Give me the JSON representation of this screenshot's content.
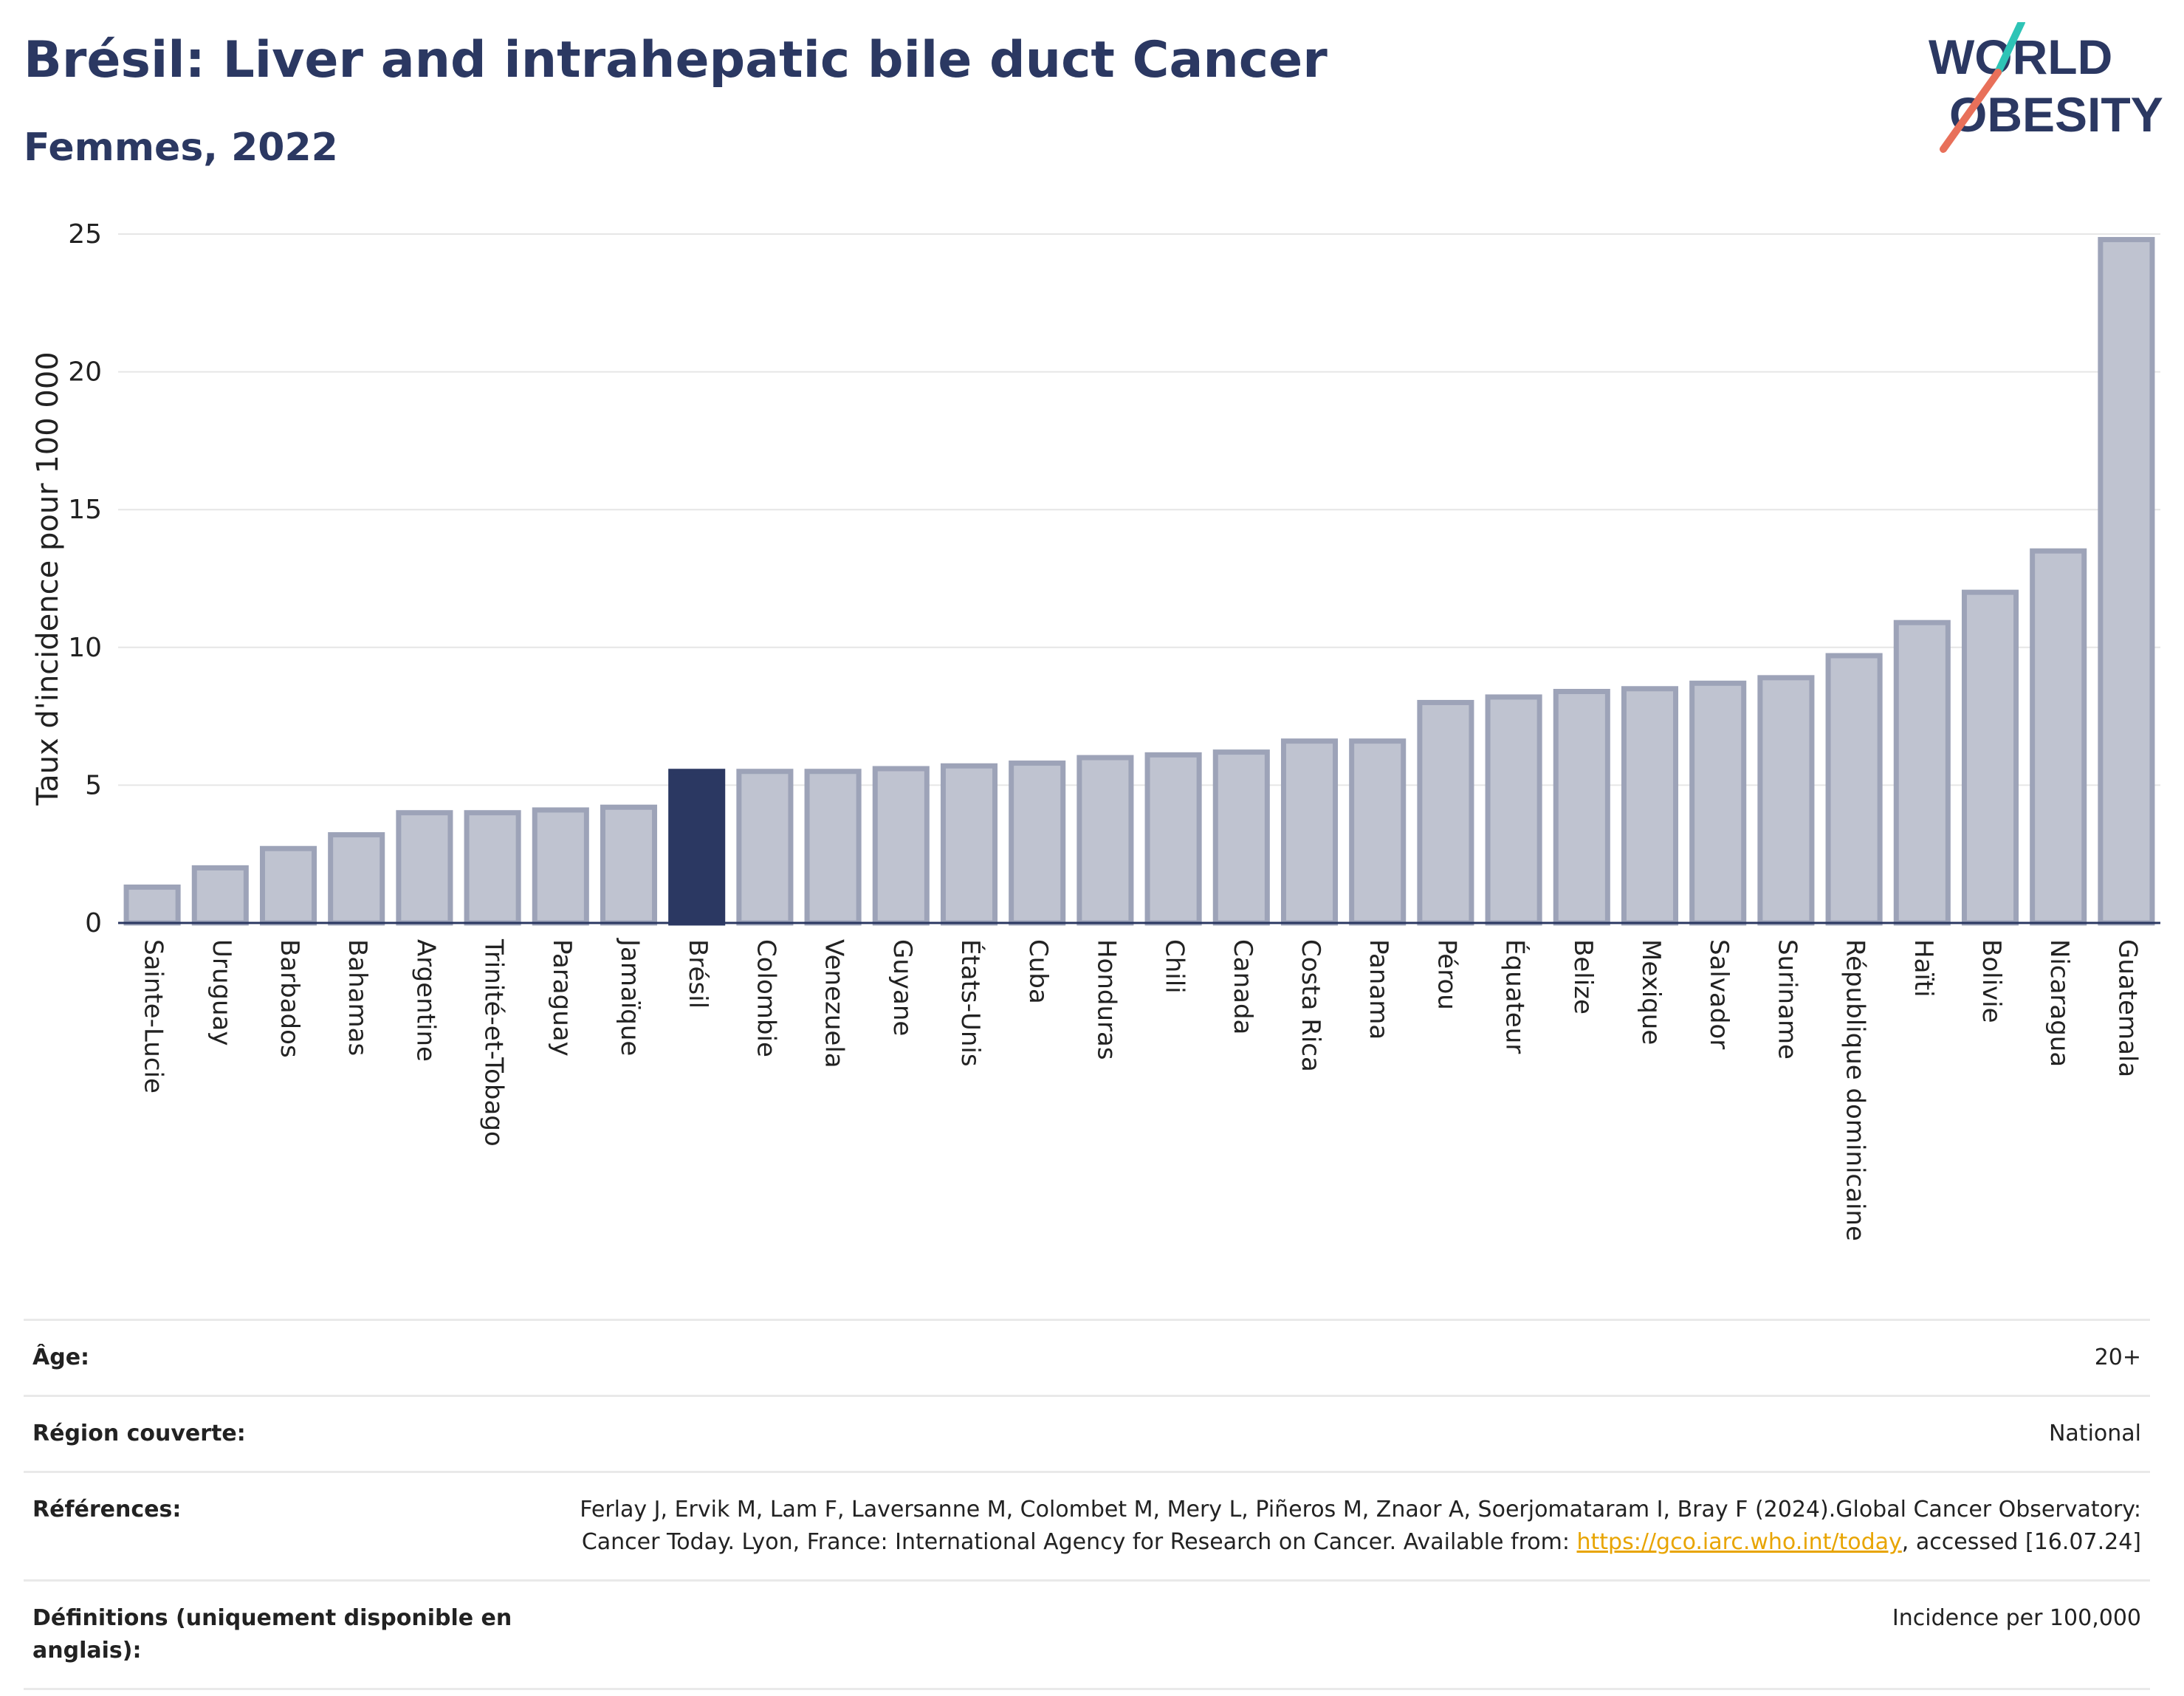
{
  "header": {
    "title": "Brésil: Liver and intrahepatic bile duct Cancer",
    "subtitle": "Femmes, 2022"
  },
  "logo": {
    "line1": "WORLD",
    "line2": "OBESITY",
    "colors": {
      "text": "#2b3862",
      "teal": "#2ec4b6",
      "coral": "#e8705a"
    }
  },
  "chart_data": {
    "type": "bar",
    "ylabel": "Taux d'incidence pour 100 000",
    "ylim": [
      0,
      25
    ],
    "yticks": [
      0,
      5,
      10,
      15,
      20,
      25
    ],
    "grid": true,
    "highlight": "Brésil",
    "colors": {
      "bar": "#bfc3d0",
      "bar_border": "#9da3b8",
      "highlight": "#2b3862"
    },
    "categories": [
      "Sainte-Lucie",
      "Uruguay",
      "Barbados",
      "Bahamas",
      "Argentine",
      "Trinité-et-Tobago",
      "Paraguay",
      "Jamaïque",
      "Brésil",
      "Colombie",
      "Venezuela",
      "Guyane",
      "États-Unis",
      "Cuba",
      "Honduras",
      "Chili",
      "Canada",
      "Costa Rica",
      "Panama",
      "Pérou",
      "Équateur",
      "Belize",
      "Mexique",
      "Salvador",
      "Suriname",
      "République dominicaine",
      "Haïti",
      "Bolivie",
      "Nicaragua",
      "Guatemala"
    ],
    "values": [
      1.3,
      2.0,
      2.7,
      3.2,
      4.0,
      4.0,
      4.1,
      4.2,
      5.5,
      5.5,
      5.5,
      5.6,
      5.7,
      5.8,
      6.0,
      6.1,
      6.2,
      6.6,
      6.6,
      8.0,
      8.2,
      8.4,
      8.5,
      8.7,
      8.9,
      9.7,
      10.9,
      12.0,
      13.5,
      24.8
    ]
  },
  "meta": {
    "age_label": "Âge:",
    "age_value": "20+",
    "region_label": "Région couverte:",
    "region_value": "National",
    "refs_label": "Références:",
    "refs_text_1": "Ferlay J, Ervik M, Lam F, Laversanne M, Colombet M, Mery L, Piñeros M, Znaor A, Soerjomataram I, Bray F (2024).Global Cancer Observatory: Cancer Today. Lyon, France: International Agency for Research on Cancer. Available from: ",
    "refs_link": "https://gco.iarc.who.int/today",
    "refs_text_2": ", accessed [16.07.24]",
    "defs_label": "Définitions (uniquement disponible en anglais):",
    "defs_value": "Incidence per 100,000"
  }
}
